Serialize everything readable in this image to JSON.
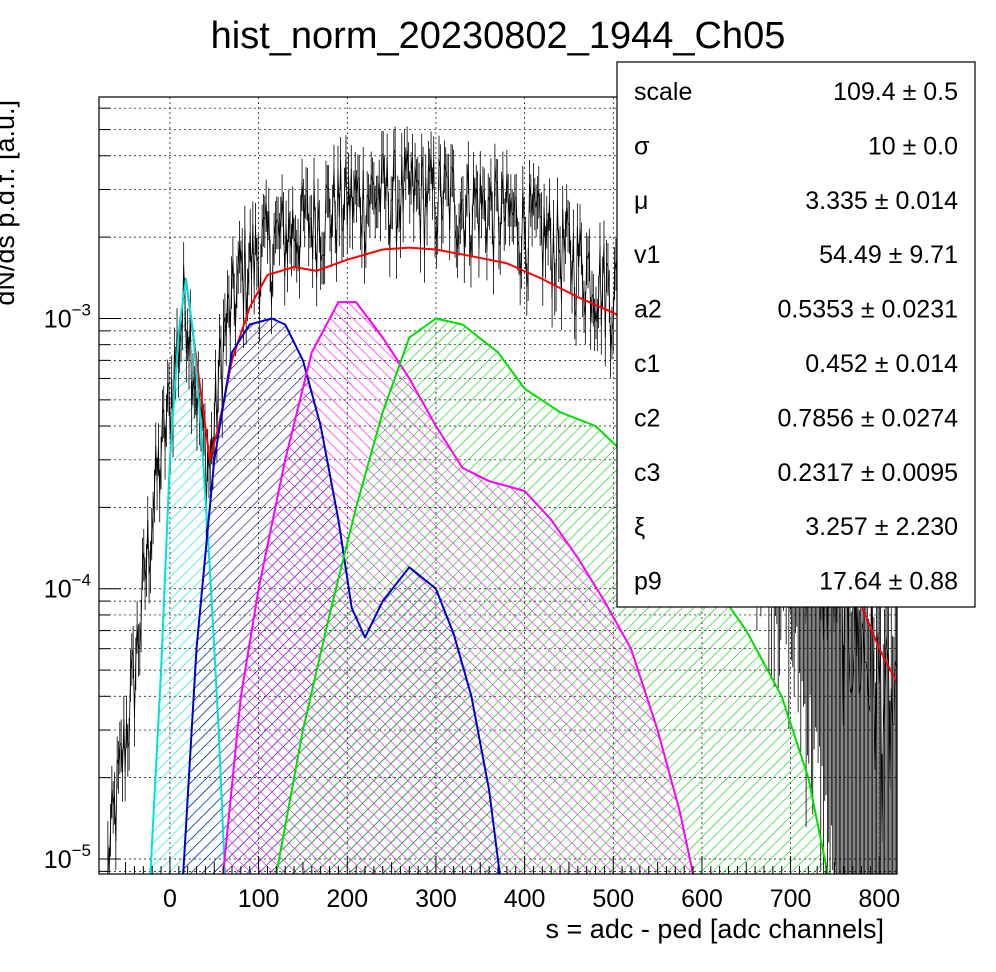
{
  "chart_data": {
    "type": "line",
    "title": "hist_norm_20230802_1944_Ch05",
    "xlabel": "s = adc - ped [adc channels]",
    "ylabel": "dN/ds p.d.f. [a.u.]",
    "xlim": [
      -80,
      820
    ],
    "ylim": [
      8.8e-06,
      0.0066
    ],
    "yscale": "log",
    "grid": true,
    "x_ticks": [
      0,
      100,
      200,
      300,
      400,
      500,
      600,
      700,
      800
    ],
    "y_ticks": [
      {
        "value": 1e-05,
        "base": "10",
        "exp": "−5"
      },
      {
        "value": 0.0001,
        "base": "10",
        "exp": "−4"
      },
      {
        "value": 0.001,
        "base": "10",
        "exp": "−3"
      }
    ],
    "histogram": {
      "color": "#000000",
      "envelope": [
        [
          -70,
          1e-05
        ],
        [
          -40,
          5e-05
        ],
        [
          -20,
          0.0002
        ],
        [
          0,
          0.0005
        ],
        [
          18,
          0.0013
        ],
        [
          35,
          0.0004
        ],
        [
          45,
          0.00028
        ],
        [
          60,
          0.00085
        ],
        [
          80,
          0.0015
        ],
        [
          100,
          0.0018
        ],
        [
          130,
          0.0021
        ],
        [
          160,
          0.0024
        ],
        [
          200,
          0.0028
        ],
        [
          250,
          0.003
        ],
        [
          300,
          0.0029
        ],
        [
          350,
          0.0027
        ],
        [
          400,
          0.0023
        ],
        [
          450,
          0.0018
        ],
        [
          500,
          0.0013
        ],
        [
          550,
          0.00095
        ],
        [
          600,
          0.00075
        ],
        [
          650,
          0.0005
        ],
        [
          700,
          0.00025
        ],
        [
          750,
          0.00011
        ],
        [
          800,
          4.5e-05
        ],
        [
          820,
          3e-05
        ]
      ]
    },
    "series": [
      {
        "color": "#ff0000",
        "points": [
          [
            18,
            0.0014
          ],
          [
            30,
            0.0007
          ],
          [
            45,
            0.0003
          ],
          [
            55,
            0.0004
          ],
          [
            70,
            0.0007
          ],
          [
            90,
            0.0011
          ],
          [
            110,
            0.00145
          ],
          [
            140,
            0.00155
          ],
          [
            165,
            0.0015
          ],
          [
            200,
            0.00165
          ],
          [
            240,
            0.0018
          ],
          [
            270,
            0.00183
          ],
          [
            300,
            0.0018
          ],
          [
            340,
            0.0017
          ],
          [
            380,
            0.0016
          ],
          [
            420,
            0.0014
          ],
          [
            460,
            0.0012
          ],
          [
            500,
            0.00105
          ],
          [
            550,
            0.00085
          ],
          [
            600,
            0.00065
          ],
          [
            650,
            0.00045
          ],
          [
            700,
            0.00028
          ],
          [
            750,
            0.00015
          ],
          [
            800,
            6e-05
          ],
          [
            820,
            4.5e-05
          ]
        ]
      },
      {
        "color": "#00e0e0",
        "fill": "#00e0e0",
        "points": [
          [
            -22,
            8.8e-06
          ],
          [
            -10,
            5e-05
          ],
          [
            0,
            0.0003
          ],
          [
            10,
            0.0009
          ],
          [
            18,
            0.0014
          ],
          [
            26,
            0.0009
          ],
          [
            35,
            0.0004
          ],
          [
            45,
            0.00012
          ],
          [
            55,
            3e-05
          ],
          [
            62,
            8.8e-06
          ]
        ]
      },
      {
        "color": "#0000cc",
        "fill": "#000080",
        "points": [
          [
            15,
            8.8e-06
          ],
          [
            30,
            6e-05
          ],
          [
            50,
            0.0003
          ],
          [
            70,
            0.00075
          ],
          [
            90,
            0.00095
          ],
          [
            115,
            0.001
          ],
          [
            130,
            0.00095
          ],
          [
            150,
            0.0007
          ],
          [
            170,
            0.0004
          ],
          [
            190,
            0.00018
          ],
          [
            205,
            8.5e-05
          ],
          [
            220,
            6.6e-05
          ],
          [
            240,
            9e-05
          ],
          [
            270,
            0.00012
          ],
          [
            300,
            0.0001
          ],
          [
            320,
            6.8e-05
          ],
          [
            340,
            4e-05
          ],
          [
            360,
            1.8e-05
          ],
          [
            372,
            8.8e-06
          ]
        ]
      },
      {
        "color": "#ff00ff",
        "fill": "#ff00ff",
        "points": [
          [
            60,
            8.8e-06
          ],
          [
            80,
            4e-05
          ],
          [
            100,
            0.0001
          ],
          [
            130,
            0.0003
          ],
          [
            160,
            0.00075
          ],
          [
            190,
            0.00115
          ],
          [
            210,
            0.00115
          ],
          [
            240,
            0.00085
          ],
          [
            270,
            0.0006
          ],
          [
            300,
            0.0004
          ],
          [
            330,
            0.00028
          ],
          [
            360,
            0.00025
          ],
          [
            380,
            0.00024
          ],
          [
            400,
            0.00023
          ],
          [
            430,
            0.00018
          ],
          [
            460,
            0.00013
          ],
          [
            490,
            9e-05
          ],
          [
            520,
            6e-05
          ],
          [
            550,
            3e-05
          ],
          [
            575,
            1.5e-05
          ],
          [
            590,
            8.8e-06
          ]
        ]
      },
      {
        "color": "#00e000",
        "fill": "#00e000",
        "points": [
          [
            120,
            8.8e-06
          ],
          [
            150,
            3e-05
          ],
          [
            180,
            8e-05
          ],
          [
            210,
            0.0002
          ],
          [
            240,
            0.00045
          ],
          [
            270,
            0.00085
          ],
          [
            300,
            0.001
          ],
          [
            330,
            0.00095
          ],
          [
            370,
            0.00075
          ],
          [
            400,
            0.00055
          ],
          [
            440,
            0.00045
          ],
          [
            480,
            0.0004
          ],
          [
            520,
            0.0003
          ],
          [
            560,
            0.0002
          ],
          [
            600,
            0.00012
          ],
          [
            650,
            7e-05
          ],
          [
            690,
            4e-05
          ],
          [
            720,
            2e-05
          ],
          [
            742,
            8.8e-06
          ]
        ]
      }
    ],
    "stats_box": [
      {
        "name": "scale",
        "value": "109.4 ± 0.5"
      },
      {
        "name": "σ",
        "value": "10 ± 0.0"
      },
      {
        "name": "μ",
        "value": "3.335 ± 0.014"
      },
      {
        "name": "v1",
        "value": "54.49 ± 9.71"
      },
      {
        "name": "a2",
        "value": "0.5353 ± 0.0231"
      },
      {
        "name": "c1",
        "value": "0.452 ± 0.014"
      },
      {
        "name": "c2",
        "value": "0.7856 ± 0.0274"
      },
      {
        "name": "c3",
        "value": "0.2317 ± 0.0095"
      },
      {
        "name": "ξ",
        "value": "3.257 ± 2.230"
      },
      {
        "name": "p9",
        "value": "17.64 ± 0.88"
      }
    ]
  }
}
